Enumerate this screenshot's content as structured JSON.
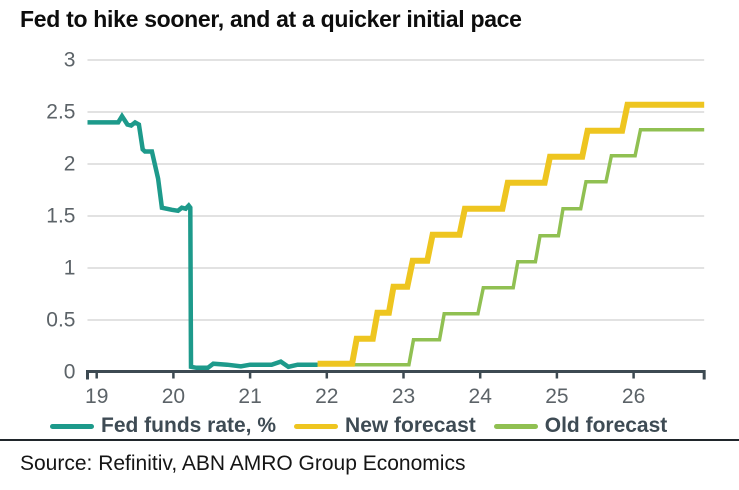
{
  "title": "Fed to hike sooner, and at a quicker initial pace",
  "source": "Source: Refinitiv, ABN AMRO Group Economics",
  "colors": {
    "background": "#ffffff",
    "title_text": "#0d0d0d",
    "axis": "#3d4a52",
    "grid": "#d8d8d8",
    "tick_label": "#5c6368",
    "legend_text": "#3e4b54",
    "divider": "#20262b",
    "source_text": "#151515"
  },
  "chart_data": {
    "type": "line",
    "title": "Fed to hike sooner, and at a quicker initial pace",
    "xlabel": "",
    "ylabel": "",
    "xlim": [
      18.88,
      26.92
    ],
    "ylim": [
      0,
      3
    ],
    "x_ticks": [
      19,
      20,
      21,
      22,
      23,
      24,
      25,
      26
    ],
    "y_ticks": [
      0,
      0.5,
      1,
      1.5,
      2,
      2.5,
      3
    ],
    "grid": "horizontal",
    "legend_position": "bottom",
    "series": [
      {
        "name": "Fed funds rate, %",
        "color": "#1d9a8b",
        "thickness": 4.5,
        "points": [
          [
            18.88,
            2.4
          ],
          [
            19.28,
            2.4
          ],
          [
            19.33,
            2.46
          ],
          [
            19.4,
            2.38
          ],
          [
            19.45,
            2.37
          ],
          [
            19.5,
            2.4
          ],
          [
            19.55,
            2.38
          ],
          [
            19.6,
            2.14
          ],
          [
            19.63,
            2.12
          ],
          [
            19.72,
            2.12
          ],
          [
            19.8,
            1.86
          ],
          [
            19.85,
            1.58
          ],
          [
            19.98,
            1.56
          ],
          [
            20.06,
            1.55
          ],
          [
            20.11,
            1.58
          ],
          [
            20.16,
            1.57
          ],
          [
            20.2,
            1.6
          ],
          [
            20.22,
            1.58
          ],
          [
            20.23,
            0.05
          ],
          [
            20.3,
            0.04
          ],
          [
            20.45,
            0.04
          ],
          [
            20.52,
            0.08
          ],
          [
            20.7,
            0.07
          ],
          [
            20.88,
            0.055
          ],
          [
            21.0,
            0.07
          ],
          [
            21.28,
            0.07
          ],
          [
            21.4,
            0.1
          ],
          [
            21.5,
            0.05
          ],
          [
            21.62,
            0.07
          ],
          [
            21.88,
            0.07
          ]
        ]
      },
      {
        "name": "Old forecast",
        "color": "#90c052",
        "thickness": 3.5,
        "points": [
          [
            21.88,
            0.07
          ],
          [
            23.07,
            0.07
          ],
          [
            23.13,
            0.31
          ],
          [
            23.47,
            0.31
          ],
          [
            23.53,
            0.56
          ],
          [
            23.97,
            0.56
          ],
          [
            24.04,
            0.81
          ],
          [
            24.43,
            0.81
          ],
          [
            24.49,
            1.06
          ],
          [
            24.72,
            1.06
          ],
          [
            24.78,
            1.31
          ],
          [
            25.02,
            1.31
          ],
          [
            25.08,
            1.57
          ],
          [
            25.31,
            1.57
          ],
          [
            25.38,
            1.83
          ],
          [
            25.64,
            1.83
          ],
          [
            25.71,
            2.08
          ],
          [
            26.02,
            2.08
          ],
          [
            26.09,
            2.33
          ],
          [
            26.92,
            2.33
          ]
        ]
      },
      {
        "name": "New forecast",
        "color": "#eec520",
        "thickness": 6,
        "points": [
          [
            21.88,
            0.08
          ],
          [
            22.33,
            0.08
          ],
          [
            22.39,
            0.32
          ],
          [
            22.6,
            0.32
          ],
          [
            22.66,
            0.57
          ],
          [
            22.81,
            0.57
          ],
          [
            22.87,
            0.82
          ],
          [
            23.05,
            0.82
          ],
          [
            23.12,
            1.07
          ],
          [
            23.31,
            1.07
          ],
          [
            23.38,
            1.32
          ],
          [
            23.73,
            1.32
          ],
          [
            23.8,
            1.57
          ],
          [
            24.29,
            1.57
          ],
          [
            24.36,
            1.82
          ],
          [
            24.84,
            1.82
          ],
          [
            24.91,
            2.07
          ],
          [
            25.33,
            2.07
          ],
          [
            25.4,
            2.32
          ],
          [
            25.85,
            2.32
          ],
          [
            25.92,
            2.57
          ],
          [
            26.92,
            2.57
          ]
        ]
      }
    ],
    "legend": [
      {
        "label": "Fed funds rate, %",
        "series_index": 0
      },
      {
        "label": "New forecast",
        "series_index": 2
      },
      {
        "label": "Old forecast",
        "series_index": 1
      }
    ]
  }
}
